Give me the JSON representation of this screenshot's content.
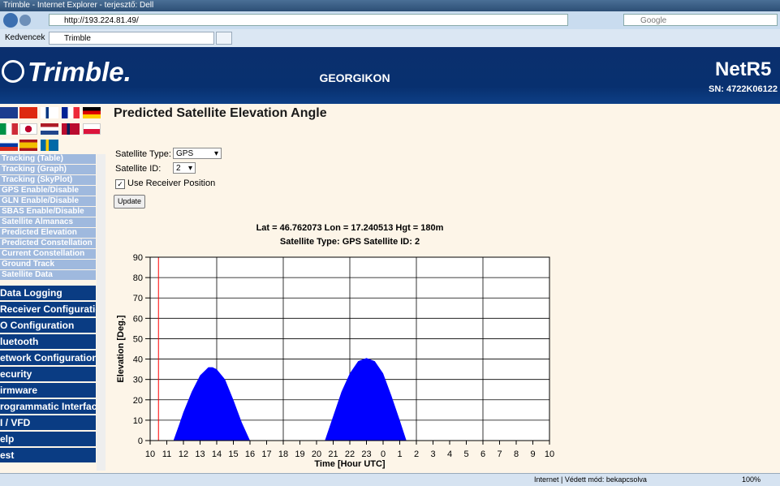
{
  "browser": {
    "title": "Trimble - Internet Explorer - terjesztő: Dell",
    "url": "http://193.224.81.49/",
    "search": "Google",
    "favorites": "Kedvencek",
    "tab": "Trimble"
  },
  "header": {
    "logo": "Trimble.",
    "center": "GEORGIKON",
    "product": "NetR5",
    "serial": "SN: 4722K06122"
  },
  "sidebar": {
    "submenu": [
      "Tracking (Table)",
      "Tracking (Graph)",
      "Tracking (SkyPlot)",
      "GPS Enable/Disable",
      "GLN Enable/Disable",
      "SBAS Enable/Disable",
      "Satellite Almanacs",
      "Predicted Elevation",
      "Predicted Constellation",
      "Current Constellation",
      "Ground Track",
      "Satellite Data"
    ],
    "menu": [
      "Data Logging",
      "Receiver Configuration",
      "O Configuration",
      "luetooth",
      "etwork Configuration",
      "ecurity",
      "irmware",
      "rogrammatic Interface",
      "I / VFD",
      "elp",
      "est"
    ]
  },
  "content": {
    "title": "Predicted Satellite Elevation Angle",
    "type_label": "Satellite Type:",
    "type_value": "GPS",
    "id_label": "Satellite ID:",
    "id_value": "2",
    "checkbox_label": "Use Receiver Position",
    "button": "Update"
  },
  "chart_data": {
    "type": "area",
    "title": "Lat = 46.762073 Lon = 17.240513 Hgt = 180m",
    "subtitle": "Satellite Type: GPS Satellite ID: 2",
    "x_label": "Time [Hour UTC]",
    "y_label": "Elevation [Deg.]",
    "x": [
      11.4,
      11.75,
      12,
      12.5,
      13,
      13.5,
      13.75,
      14,
      14.5,
      15,
      15.5,
      16,
      null,
      20.5,
      21,
      21.5,
      22,
      22.5,
      23,
      23.5,
      24,
      24.5,
      25,
      25.4
    ],
    "values": [
      0,
      8,
      14,
      24,
      32,
      36,
      36,
      35,
      30,
      20,
      9,
      0,
      null,
      0,
      12,
      24,
      33,
      39,
      40.5,
      39,
      33,
      22,
      10,
      0
    ],
    "color": "#0000ff",
    "marker_x": 10.5,
    "marker_color": "#ff0000",
    "xlim": [
      10,
      34
    ],
    "ylim": [
      0,
      90
    ],
    "xticks": [
      10,
      11,
      12,
      13,
      14,
      15,
      16,
      17,
      18,
      19,
      20,
      21,
      22,
      23,
      {
        "value": 24,
        "label": "0"
      },
      {
        "value": 25,
        "label": "1"
      },
      {
        "value": 26,
        "label": "2"
      },
      {
        "value": 27,
        "label": "3"
      },
      {
        "value": 28,
        "label": "4"
      },
      {
        "value": 29,
        "label": "5"
      },
      {
        "value": 30,
        "label": "6"
      },
      {
        "value": 31,
        "label": "7"
      },
      {
        "value": 32,
        "label": "8"
      },
      {
        "value": 33,
        "label": "9"
      },
      {
        "value": 34,
        "label": "10"
      }
    ],
    "yticks": [
      0,
      10,
      20,
      30,
      40,
      50,
      60,
      70,
      80,
      90
    ],
    "x_grid_step": 4,
    "grid": true
  },
  "status": {
    "text": "Internet | Védett mód: bekapcsolva",
    "zoom": "100%"
  }
}
